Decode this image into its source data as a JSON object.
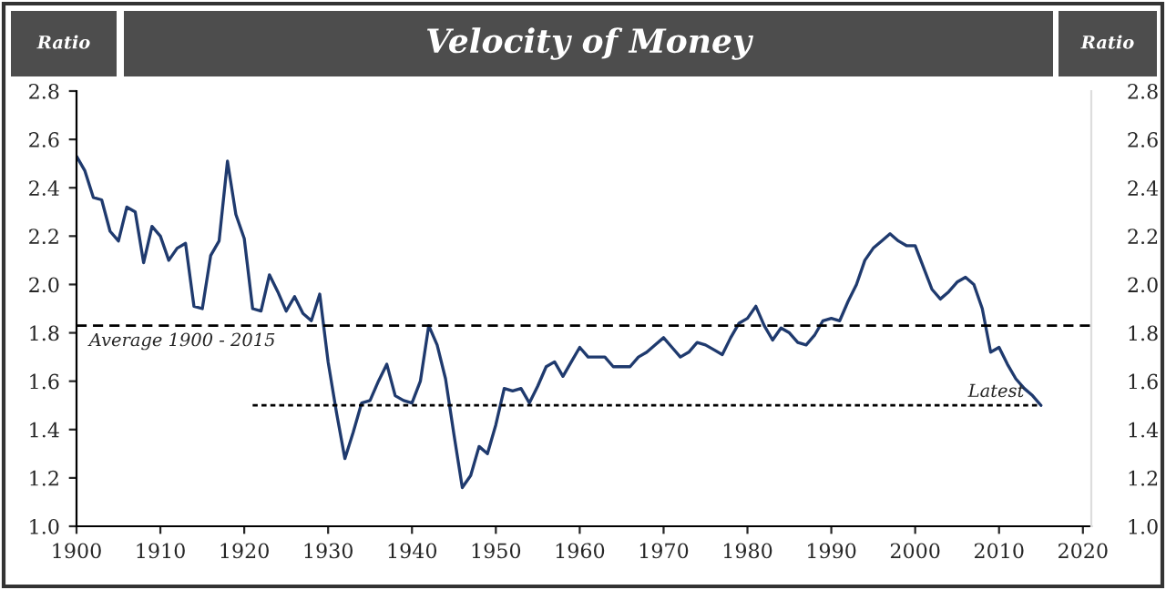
{
  "chart_data": {
    "type": "line",
    "title": "Velocity of Money",
    "ylabel": "Ratio",
    "y2label": "Ratio",
    "x": [
      1900,
      1901,
      1902,
      1903,
      1904,
      1905,
      1906,
      1907,
      1908,
      1909,
      1910,
      1911,
      1912,
      1913,
      1914,
      1915,
      1916,
      1917,
      1918,
      1919,
      1920,
      1921,
      1922,
      1923,
      1924,
      1925,
      1926,
      1927,
      1928,
      1929,
      1930,
      1931,
      1932,
      1933,
      1934,
      1935,
      1936,
      1937,
      1938,
      1939,
      1940,
      1941,
      1942,
      1943,
      1944,
      1945,
      1946,
      1947,
      1948,
      1949,
      1950,
      1951,
      1952,
      1953,
      1954,
      1955,
      1956,
      1957,
      1958,
      1959,
      1960,
      1961,
      1962,
      1963,
      1964,
      1965,
      1966,
      1967,
      1968,
      1969,
      1970,
      1971,
      1972,
      1973,
      1974,
      1975,
      1976,
      1977,
      1978,
      1979,
      1980,
      1981,
      1982,
      1983,
      1984,
      1985,
      1986,
      1987,
      1988,
      1989,
      1990,
      1991,
      1992,
      1993,
      1994,
      1995,
      1996,
      1997,
      1998,
      1999,
      2000,
      2001,
      2002,
      2003,
      2004,
      2005,
      2006,
      2007,
      2008,
      2009,
      2010,
      2011,
      2012,
      2013,
      2014,
      2015
    ],
    "series": [
      {
        "color": "#1f3a6e",
        "line_style": "solid",
        "values": [
          2.53,
          2.47,
          2.36,
          2.35,
          2.22,
          2.18,
          2.32,
          2.3,
          2.09,
          2.24,
          2.2,
          2.1,
          2.15,
          2.17,
          1.91,
          1.9,
          2.12,
          2.18,
          2.51,
          2.29,
          2.19,
          1.9,
          1.89,
          2.04,
          1.97,
          1.89,
          1.95,
          1.88,
          1.85,
          1.96,
          1.68,
          1.47,
          1.28,
          1.39,
          1.51,
          1.52,
          1.6,
          1.67,
          1.54,
          1.52,
          1.51,
          1.6,
          1.83,
          1.75,
          1.61,
          1.38,
          1.16,
          1.21,
          1.33,
          1.3,
          1.42,
          1.57,
          1.56,
          1.57,
          1.51,
          1.58,
          1.66,
          1.68,
          1.62,
          1.68,
          1.74,
          1.7,
          1.7,
          1.7,
          1.66,
          1.66,
          1.66,
          1.7,
          1.72,
          1.75,
          1.78,
          1.74,
          1.7,
          1.72,
          1.76,
          1.75,
          1.73,
          1.71,
          1.78,
          1.84,
          1.86,
          1.91,
          1.83,
          1.77,
          1.82,
          1.8,
          1.76,
          1.75,
          1.79,
          1.85,
          1.86,
          1.85,
          1.93,
          2.0,
          2.1,
          2.15,
          2.18,
          2.21,
          2.18,
          2.16,
          2.16,
          2.07,
          1.98,
          1.94,
          1.97,
          2.01,
          2.03,
          2.0,
          1.9,
          1.72,
          1.74,
          1.67,
          1.61,
          1.57,
          1.54,
          1.5
        ]
      },
      {
        "color": "#000000",
        "line_style": "dotted",
        "x": [
          1921,
          2015
        ],
        "values": [
          1.5,
          1.5
        ]
      }
    ],
    "ref_lines": [
      {
        "axis": "y",
        "value": 1.83,
        "label": "Average 1900 - 2015",
        "color": "#000000",
        "line_style": "dashed"
      }
    ],
    "annotations": [
      {
        "text": "Latest",
        "x": 2013,
        "y": 1.5
      }
    ],
    "xlim": [
      1900,
      2021
    ],
    "xticks": [
      1900,
      1910,
      1920,
      1930,
      1940,
      1950,
      1960,
      1970,
      1980,
      1990,
      2000,
      2010,
      2020
    ],
    "ylim": [
      1.0,
      2.8
    ],
    "yticks": [
      {
        "value": 1,
        "label": "1.0"
      },
      1.2,
      1.4,
      1.6,
      1.8,
      {
        "value": 2,
        "label": "2.0"
      },
      2.2,
      2.4,
      2.6,
      2.8
    ],
    "y2lim": [
      1.0,
      2.8
    ],
    "y2ticks": [
      {
        "value": 1,
        "label": "1.0"
      },
      1.2,
      1.4,
      1.6,
      1.8,
      {
        "value": 2,
        "label": "2.0"
      },
      2.2,
      2.4,
      2.6,
      2.8
    ],
    "grid": false,
    "legend": false,
    "marker": "none"
  }
}
